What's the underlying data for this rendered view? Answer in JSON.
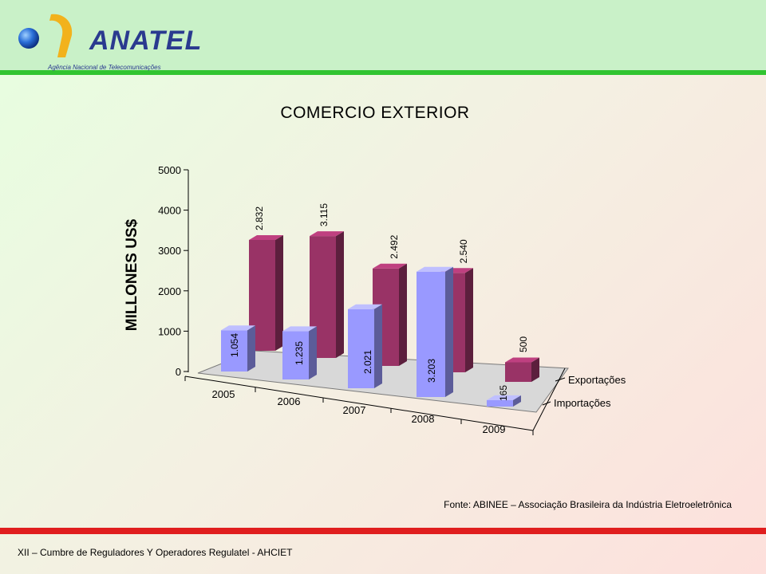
{
  "logo": {
    "word": "ANATEL",
    "subtitle": "Agência Nacional de Telecomunicações"
  },
  "footer": {
    "text": "XII – Cumbre de Reguladores Y Operadores Regulatel - AHCIET"
  },
  "source": "Fonte: ABINEE – Associação Brasileira da Indústria  Eletroeletrônica",
  "colors": {
    "exports": "#993366",
    "imports": "#9999ff",
    "header_bar": "#31c431",
    "footer_bar": "#e01e1e"
  },
  "chart_data": {
    "type": "bar",
    "title": "COMERCIO EXTERIOR",
    "ylabel": "MILLONES US$",
    "ylim": [
      0,
      5000
    ],
    "yticks": [
      0,
      1000,
      2000,
      3000,
      4000,
      5000
    ],
    "categories": [
      "2005",
      "2006",
      "2007",
      "2008",
      "2009"
    ],
    "series": [
      {
        "name": "Exportações",
        "values": [
          2832,
          3115,
          2492,
          2540,
          500
        ],
        "labels": [
          "2.832",
          "3.115",
          "2.492",
          "2.540",
          "500"
        ]
      },
      {
        "name": "Importações",
        "values": [
          1054,
          1235,
          2021,
          3203,
          165
        ],
        "labels": [
          "1.054",
          "1.235",
          "2.021",
          "3.203",
          "165"
        ]
      }
    ],
    "legend": "series labels on depth axis (right)",
    "grid": false
  }
}
